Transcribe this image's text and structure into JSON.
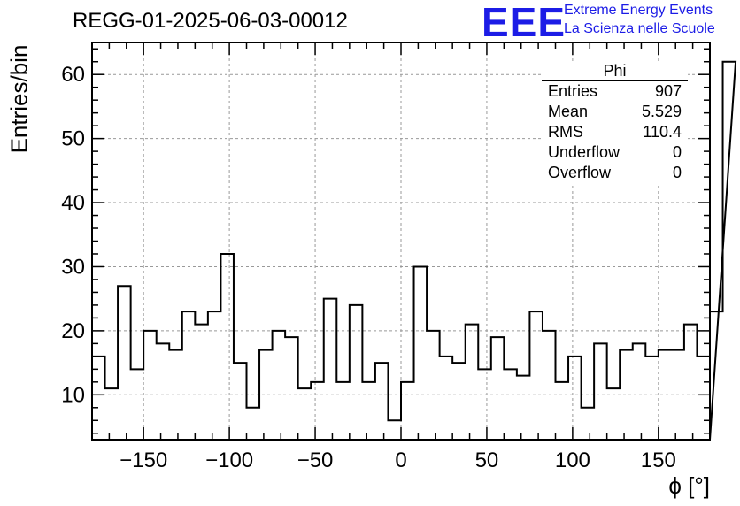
{
  "header": {
    "run_title": "REGG-01-2025-06-03-00012",
    "logo_text": "EEE",
    "tagline_1": "Extreme Energy Events",
    "tagline_2": "La Scienza nelle Scuole"
  },
  "stats_box": {
    "title": "Phi",
    "rows": [
      {
        "label": "Entries",
        "value": "907"
      },
      {
        "label": "Mean",
        "value": "5.529"
      },
      {
        "label": "RMS",
        "value": "110.4"
      },
      {
        "label": "Underflow",
        "value": "0"
      },
      {
        "label": "Overflow",
        "value": "0"
      }
    ]
  },
  "colors": {
    "logo": "#1c1ce6",
    "line": "#000000",
    "grid": "#999999"
  },
  "chart_data": {
    "type": "histogram",
    "title": "REGG-01-2025-06-03-00012",
    "xlabel": "ϕ [°]",
    "ylabel": "Entries/bin",
    "xlim": [
      -180,
      180
    ],
    "ylim": [
      3,
      65
    ],
    "bin_width": 7.5,
    "x_ticks": [
      -150,
      -100,
      -50,
      0,
      50,
      100,
      150
    ],
    "y_ticks": [
      10,
      20,
      30,
      40,
      50,
      60
    ],
    "grid": true,
    "values": [
      16,
      11,
      27,
      14,
      20,
      18,
      17,
      23,
      21,
      23,
      32,
      15,
      8,
      17,
      20,
      19,
      11,
      12,
      25,
      12,
      24,
      12,
      15,
      6,
      12,
      30,
      20,
      16,
      15,
      21,
      14,
      19,
      14,
      13,
      23,
      20,
      12,
      16,
      8,
      18,
      11,
      17,
      18,
      16,
      17,
      17,
      21,
      16,
      23,
      62
    ]
  }
}
